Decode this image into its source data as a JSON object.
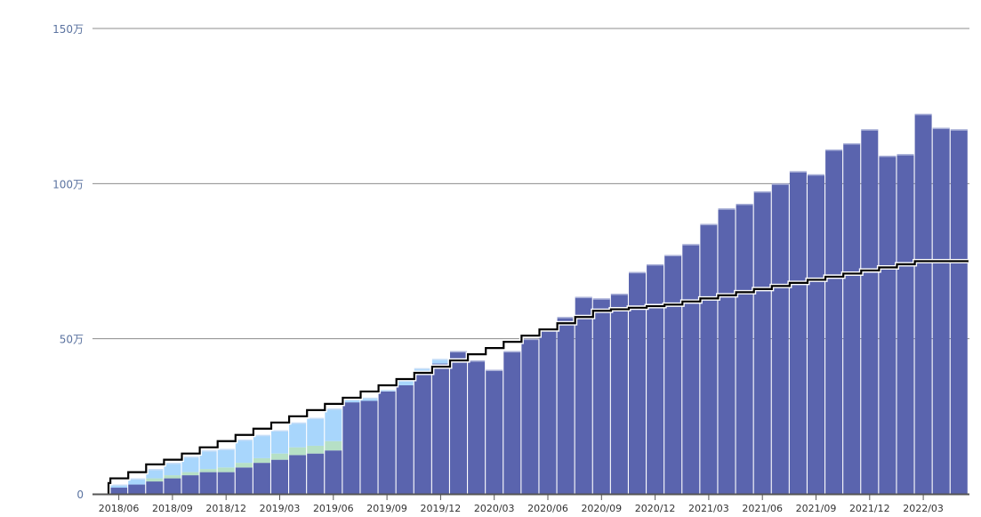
{
  "chart_data": {
    "type": "bar",
    "subtype": "stacked-bar-with-step-line",
    "categories": [
      "2018/05",
      "2018/06",
      "2018/07",
      "2018/08",
      "2018/09",
      "2018/10",
      "2018/11",
      "2018/12",
      "2019/01",
      "2019/02",
      "2019/03",
      "2019/04",
      "2019/05",
      "2019/06",
      "2019/07",
      "2019/08",
      "2019/09",
      "2019/10",
      "2019/11",
      "2019/12",
      "2020/01",
      "2020/02",
      "2020/03",
      "2020/04",
      "2020/05",
      "2020/06",
      "2020/07",
      "2020/08",
      "2020/09",
      "2020/10",
      "2020/11",
      "2020/12",
      "2021/01",
      "2021/02",
      "2021/03",
      "2021/04",
      "2021/05",
      "2021/06",
      "2021/07",
      "2021/08",
      "2021/09",
      "2021/10",
      "2021/11",
      "2021/12",
      "2022/01",
      "2022/02",
      "2022/03",
      "2022/04",
      "2022/05"
    ],
    "x_tick_labels": [
      "2018/06",
      "2018/09",
      "2018/12",
      "2019/03",
      "2019/06",
      "2019/09",
      "2019/12",
      "2020/03",
      "2020/06",
      "2020/09",
      "2020/12",
      "2021/03",
      "2021/06",
      "2021/09",
      "2021/12",
      "2022/03"
    ],
    "y_tick_labels": [
      "0",
      "50万",
      "100万",
      "150万"
    ],
    "ylim": [
      0,
      150
    ],
    "y_unit": "万",
    "grid": true,
    "legend": "none",
    "title": "",
    "xlabel": "",
    "ylabel": "",
    "series": [
      {
        "role": "bottom",
        "color": "#5a64ae",
        "values": [
          0,
          2,
          3,
          4,
          5,
          6,
          7,
          7,
          8.5,
          10,
          11,
          12.5,
          13,
          14,
          29.5,
          30,
          33,
          35,
          39,
          42,
          46,
          43,
          40,
          46,
          50,
          53,
          57,
          63.5,
          63,
          64.5,
          71.5,
          74,
          77,
          80.5,
          87,
          92,
          93.5,
          97.5,
          100,
          104,
          103,
          111,
          113,
          117.5,
          109,
          109.5,
          122.5,
          118,
          117.5
        ]
      },
      {
        "role": "middle",
        "color": "#b6e0c6",
        "values": [
          0,
          0,
          0,
          1,
          1,
          1,
          1,
          1.5,
          1.5,
          1.5,
          2,
          2.5,
          2.5,
          3,
          0,
          0,
          0,
          0,
          0,
          0,
          0,
          0,
          0,
          0,
          0,
          0,
          0,
          0,
          0,
          0,
          0,
          0,
          0,
          0,
          0,
          0,
          0,
          0,
          0,
          0,
          0,
          0,
          0,
          0,
          0,
          0,
          0,
          0,
          0
        ]
      },
      {
        "role": "top",
        "color": "#a8d6fc",
        "values": [
          0,
          1,
          2,
          3,
          4,
          5,
          6,
          6,
          7.5,
          7.5,
          7.5,
          8,
          9,
          10.5,
          1,
          1,
          0.5,
          2,
          1.5,
          1.5,
          0,
          0,
          0,
          0,
          0,
          0,
          0,
          0,
          0,
          0,
          0,
          0,
          0,
          0,
          0,
          0,
          0,
          0,
          0,
          0,
          0,
          0,
          0,
          0,
          0,
          0,
          0,
          0,
          0
        ]
      }
    ],
    "line": {
      "type": "step",
      "color": "#000000",
      "values": [
        3.5,
        5,
        7,
        9.5,
        11,
        13,
        15,
        17,
        19,
        21,
        23,
        25,
        27,
        29,
        31,
        33,
        35,
        37,
        39,
        41,
        43,
        45,
        47,
        49,
        51,
        53,
        55,
        57,
        59,
        59.5,
        60,
        60.5,
        61,
        62,
        63,
        64,
        65,
        66,
        67,
        68,
        69,
        70,
        71,
        72,
        73,
        74,
        75,
        75,
        75
      ]
    },
    "colors": {
      "grid": "#8c8c8c",
      "axis": "#555555",
      "tick_label": "#5b73a0",
      "bar_gap": "#ffffff"
    }
  }
}
